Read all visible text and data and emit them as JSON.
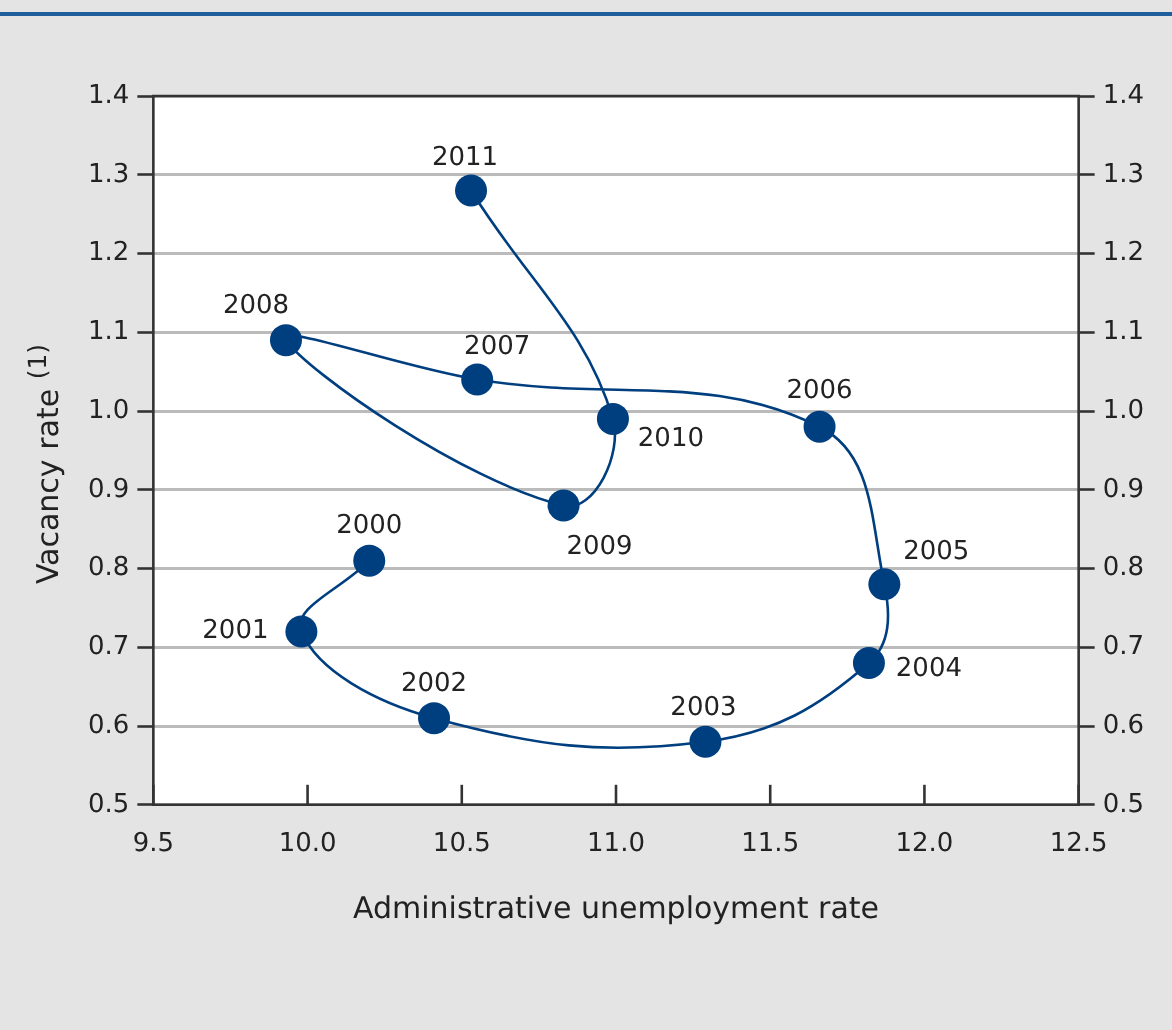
{
  "chart_data": {
    "type": "line",
    "xlabel": "Administrative unemployment rate",
    "ylabel": "Vacancy rate $^{(1)}$",
    "series": [
      {
        "color": "#003f7f",
        "x": [
          10.2,
          9.98,
          10.41,
          11.29,
          11.82,
          11.87,
          11.66,
          10.55,
          9.93,
          10.83,
          10.99,
          10.53
        ],
        "values": [
          0.81,
          0.72,
          0.61,
          0.58,
          0.68,
          0.78,
          0.98,
          1.04,
          1.09,
          0.88,
          0.99,
          1.28
        ]
      }
    ],
    "annotations": [
      {
        "text": "2000",
        "x": 10.2,
        "y": 0.81
      },
      {
        "text": "2001",
        "x": 9.98,
        "y": 0.72
      },
      {
        "text": "2002",
        "x": 10.41,
        "y": 0.61
      },
      {
        "text": "2003",
        "x": 11.29,
        "y": 0.58
      },
      {
        "text": "2004",
        "x": 11.82,
        "y": 0.68
      },
      {
        "text": "2005",
        "x": 11.87,
        "y": 0.78
      },
      {
        "text": "2006",
        "x": 11.66,
        "y": 0.98
      },
      {
        "text": "2007",
        "x": 10.55,
        "y": 1.04
      },
      {
        "text": "2008",
        "x": 9.93,
        "y": 1.09
      },
      {
        "text": "2009",
        "x": 10.83,
        "y": 0.88
      },
      {
        "text": "2010",
        "x": 10.99,
        "y": 0.99
      },
      {
        "text": "2011",
        "x": 10.53,
        "y": 1.28
      }
    ],
    "xlim": [
      9.5,
      12.5
    ],
    "xticks": [
      {
        "value": 9.5,
        "label": "9.5"
      },
      {
        "value": 10,
        "label": "10.0"
      },
      {
        "value": 10.5,
        "label": "10.5"
      },
      {
        "value": 11,
        "label": "11.0"
      },
      {
        "value": 11.5,
        "label": "11.5"
      },
      {
        "value": 12,
        "label": "12.0"
      },
      {
        "value": 12.5,
        "label": "12.5"
      }
    ],
    "ylim": [
      0.5,
      1.4
    ],
    "yticks": [
      0.5,
      0.6,
      0.7,
      0.8,
      0.9,
      {
        "value": 1,
        "label": "1.0"
      },
      1.1,
      1.2,
      1.3,
      1.4
    ],
    "y2lim": [
      0.5,
      1.4
    ],
    "y2ticks": [
      0.5,
      0.6,
      0.7,
      0.8,
      0.9,
      {
        "value": 1,
        "label": "1.0"
      },
      1.1,
      1.2,
      1.3,
      1.4
    ],
    "grid": "y",
    "marker": "circle",
    "line_style": "solid",
    "legend": false
  }
}
